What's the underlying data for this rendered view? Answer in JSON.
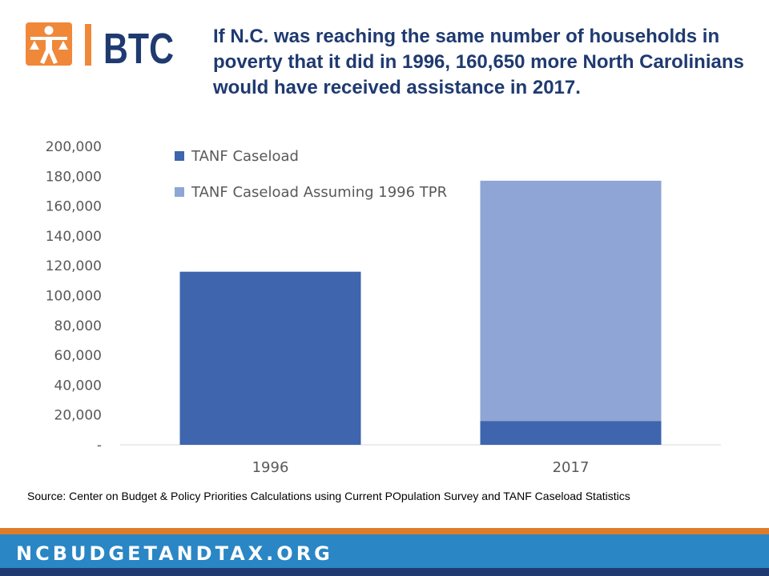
{
  "colors": {
    "series1": "#3e65ad",
    "series2": "#8fa5d5",
    "headline": "#1f3a70",
    "logo_orange": "#f0883a",
    "logo_blue": "#1f3a70",
    "footer_orange": "#e07b2a",
    "footer_blue": "#2a86c4"
  },
  "logo": {
    "text": "BTC",
    "icon": "person-scales-icon"
  },
  "headline": "If N.C. was reaching the same number of households in poverty that it did in 1996, 160,650 more North Carolinians would have received assistance in 2017.",
  "source": "Source:  Center on Budget & Policy Priorities Calculations using Current POpulation Survey and TANF Caseload Statistics",
  "footer": {
    "url": "NCBUDGETANDTAX.ORG"
  },
  "chart_data": {
    "type": "bar",
    "stacked": true,
    "categories": [
      "1996",
      "2017"
    ],
    "series": [
      {
        "name": "TANF Caseload",
        "values": [
          116000,
          16000
        ]
      },
      {
        "name": "TANF Caseload Assuming 1996 TPR",
        "values": [
          0,
          161000
        ]
      }
    ],
    "ylim": [
      0,
      200000
    ],
    "yticks": [
      0,
      20000,
      40000,
      60000,
      80000,
      100000,
      120000,
      140000,
      160000,
      180000,
      200000
    ],
    "ytick_labels": [
      "-",
      "20,000",
      "40,000",
      "60,000",
      "80,000",
      "100,000",
      "120,000",
      "140,000",
      "160,000",
      "180,000",
      "200,000"
    ],
    "grid": false,
    "legend_position": "top-left"
  }
}
